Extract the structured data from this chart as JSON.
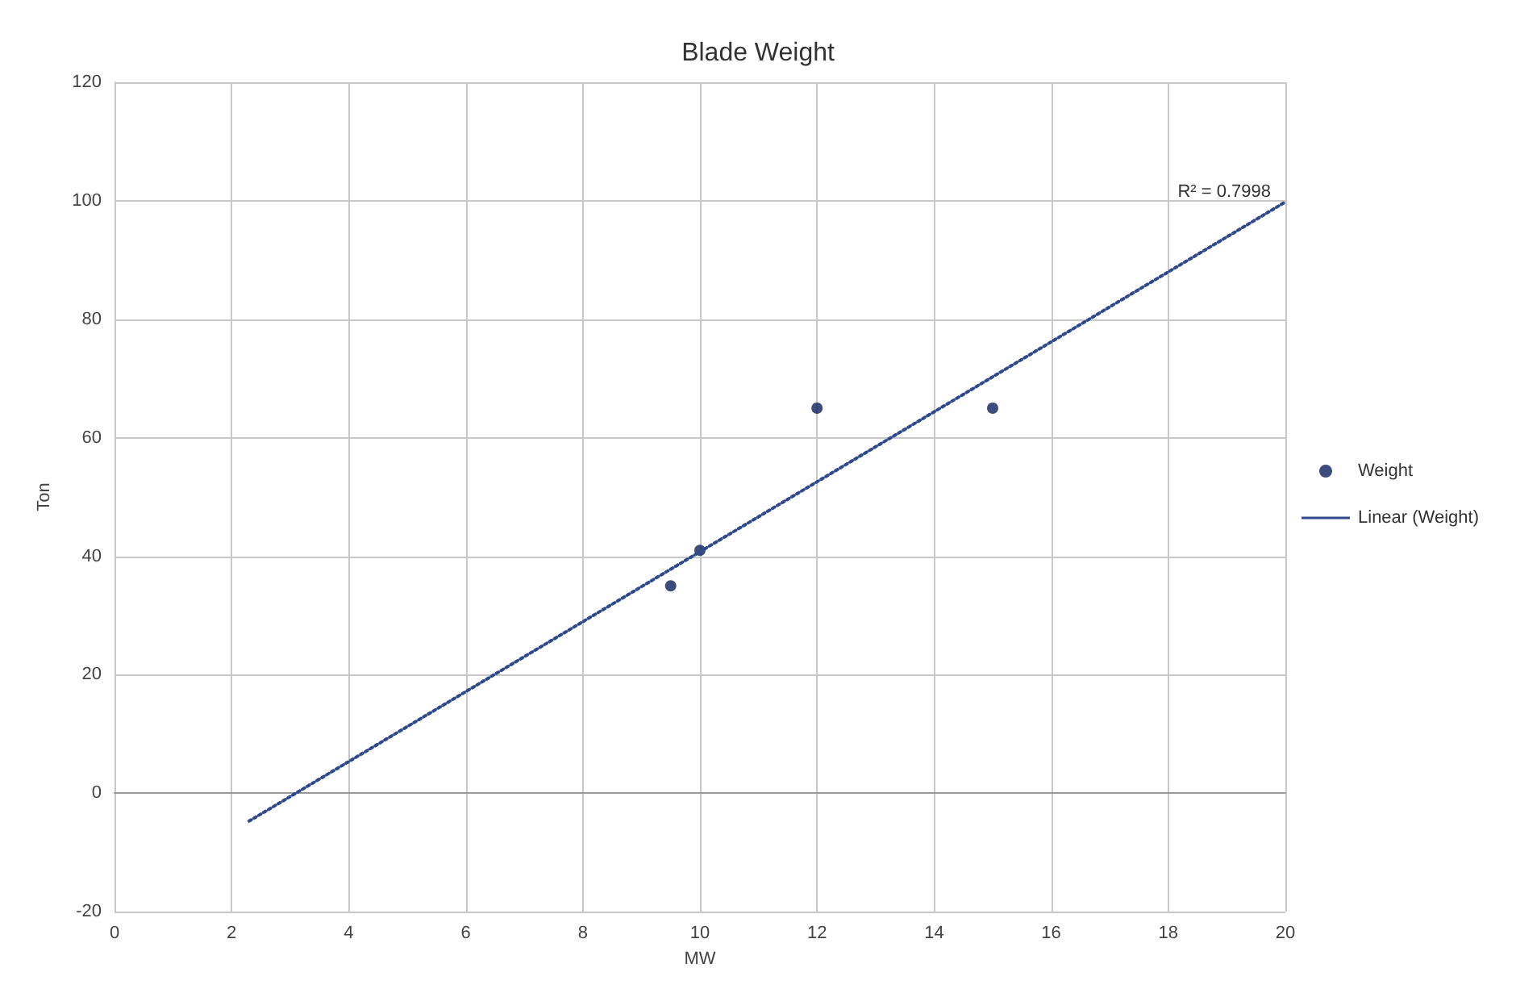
{
  "chart_data": {
    "type": "scatter",
    "title": "Blade Weight",
    "xlabel": "MW",
    "ylabel": "Ton",
    "xlim": [
      0,
      20
    ],
    "xticks": [
      0,
      2,
      4,
      6,
      8,
      10,
      12,
      14,
      16,
      18,
      20
    ],
    "ylim": [
      -20,
      120
    ],
    "yticks": [
      -20,
      0,
      20,
      40,
      60,
      80,
      100,
      120
    ],
    "grid": true,
    "legend": "right",
    "series": [
      {
        "name": "Weight",
        "type": "scatter",
        "marker": "circle",
        "color": "#0b1f5c",
        "x": [
          9.5,
          10,
          12,
          15
        ],
        "values": [
          35,
          41,
          65,
          65
        ]
      },
      {
        "name": "Linear (Weight)",
        "type": "line",
        "marker": "none",
        "line_style": "dotted",
        "color": "#2e4a8c",
        "x": [
          2.3,
          20
        ],
        "values": [
          -4.7,
          99.8
        ]
      }
    ],
    "annotations": [
      {
        "text": "R² = 0.7998",
        "x": 20,
        "y": 100
      }
    ]
  }
}
